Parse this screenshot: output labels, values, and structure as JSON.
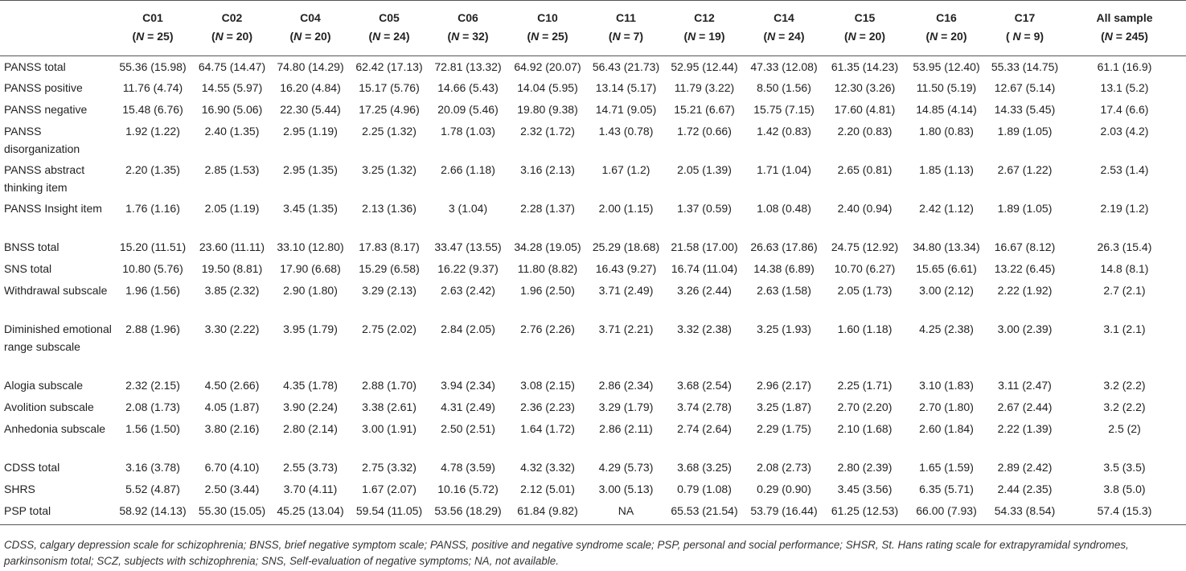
{
  "table": {
    "columns": [
      {
        "name": "C01",
        "n": "(N = 25)"
      },
      {
        "name": "C02",
        "n": "(N = 20)"
      },
      {
        "name": "C04",
        "n": "(N = 20)"
      },
      {
        "name": "C05",
        "n": "(N = 24)"
      },
      {
        "name": "C06",
        "n": "(N = 32)"
      },
      {
        "name": "C10",
        "n": "(N = 25)"
      },
      {
        "name": "C11",
        "n": "(N = 7)"
      },
      {
        "name": "C12",
        "n": "(N = 19)"
      },
      {
        "name": "C14",
        "n": "(N = 24)"
      },
      {
        "name": "C15",
        "n": "(N = 20)"
      },
      {
        "name": "C16",
        "n": "(N = 20)"
      },
      {
        "name": "C17",
        "n": "( N = 9)"
      },
      {
        "name": "All sample",
        "n": "(N = 245)"
      }
    ],
    "rows": [
      {
        "label": "PANSS total",
        "values": [
          "55.36 (15.98)",
          "64.75 (14.47)",
          "74.80 (14.29)",
          "62.42 (17.13)",
          "72.81 (13.32)",
          "64.92 (20.07)",
          "56.43 (21.73)",
          "52.95 (12.44)",
          "47.33 (12.08)",
          "61.35 (14.23)",
          "53.95 (12.40)",
          "55.33 (14.75)",
          "61.1 (16.9)"
        ]
      },
      {
        "label": "PANSS positive",
        "values": [
          "11.76 (4.74)",
          "14.55 (5.97)",
          "16.20 (4.84)",
          "15.17 (5.76)",
          "14.66 (5.43)",
          "14.04 (5.95)",
          "13.14 (5.17)",
          "11.79 (3.22)",
          "8.50 (1.56)",
          "12.30 (3.26)",
          "11.50 (5.19)",
          "12.67 (5.14)",
          "13.1 (5.2)"
        ]
      },
      {
        "label": "PANSS negative",
        "values": [
          "15.48 (6.76)",
          "16.90 (5.06)",
          "22.30 (5.44)",
          "17.25 (4.96)",
          "20.09 (5.46)",
          "19.80 (9.38)",
          "14.71 (9.05)",
          "15.21 (6.67)",
          "15.75 (7.15)",
          "17.60 (4.81)",
          "14.85 (4.14)",
          "14.33 (5.45)",
          "17.4 (6.6)"
        ]
      },
      {
        "label": "PANSS disorganization",
        "values": [
          "1.92 (1.22)",
          "2.40 (1.35)",
          "2.95 (1.19)",
          "2.25 (1.32)",
          "1.78 (1.03)",
          "2.32 (1.72)",
          "1.43 (0.78)",
          "1.72 (0.66)",
          "1.42 (0.83)",
          "2.20 (0.83)",
          "1.80 (0.83)",
          "1.89 (1.05)",
          "2.03 (4.2)"
        ]
      },
      {
        "label": "PANSS abstract thinking item",
        "values": [
          "2.20 (1.35)",
          "2.85 (1.53)",
          "2.95 (1.35)",
          "3.25 (1.32)",
          "2.66 (1.18)",
          "3.16 (2.13)",
          "1.67 (1.2)",
          "2.05 (1.39)",
          "1.71 (1.04)",
          "2.65 (0.81)",
          "1.85 (1.13)",
          "2.67 (1.22)",
          "2.53 (1.4)"
        ]
      },
      {
        "label": "PANSS Insight item",
        "values": [
          "1.76 (1.16)",
          "2.05 (1.19)",
          "3.45 (1.35)",
          "2.13 (1.36)",
          "3 (1.04)",
          "2.28 (1.37)",
          "2.00 (1.15)",
          "1.37 (0.59)",
          "1.08 (0.48)",
          "2.40 (0.94)",
          "2.42 (1.12)",
          "1.89 (1.05)",
          "2.19 (1.2)"
        ]
      },
      {
        "label": "BNSS total",
        "values": [
          "15.20 (11.51)",
          "23.60 (11.11)",
          "33.10 (12.80)",
          "17.83 (8.17)",
          "33.47 (13.55)",
          "34.28 (19.05)",
          "25.29 (18.68)",
          "21.58 (17.00)",
          "26.63 (17.86)",
          "24.75 (12.92)",
          "34.80 (13.34)",
          "16.67 (8.12)",
          "26.3 (15.4)"
        ]
      },
      {
        "label": "SNS total",
        "values": [
          "10.80 (5.76)",
          "19.50 (8.81)",
          "17.90 (6.68)",
          "15.29 (6.58)",
          "16.22 (9.37)",
          "11.80 (8.82)",
          "16.43 (9.27)",
          "16.74 (11.04)",
          "14.38 (6.89)",
          "10.70 (6.27)",
          "15.65 (6.61)",
          "13.22 (6.45)",
          "14.8 (8.1)"
        ]
      },
      {
        "label": "Withdrawal subscale",
        "values": [
          "1.96 (1.56)",
          "3.85 (2.32)",
          "2.90 (1.80)",
          "3.29 (2.13)",
          "2.63 (2.42)",
          "1.96 (2.50)",
          "3.71 (2.49)",
          "3.26 (2.44)",
          "2.63 (1.58)",
          "2.05 (1.73)",
          "3.00 (2.12)",
          "2.22 (1.92)",
          "2.7 (2.1)"
        ]
      },
      {
        "label": "Diminished emotional range subscale",
        "values": [
          "2.88 (1.96)",
          "3.30 (2.22)",
          "3.95 (1.79)",
          "2.75 (2.02)",
          "2.84 (2.05)",
          "2.76 (2.26)",
          "3.71 (2.21)",
          "3.32 (2.38)",
          "3.25 (1.93)",
          "1.60 (1.18)",
          "4.25 (2.38)",
          "3.00 (2.39)",
          "3.1 (2.1)"
        ]
      },
      {
        "label": "Alogia subscale",
        "values": [
          "2.32 (2.15)",
          "4.50 (2.66)",
          "4.35 (1.78)",
          "2.88 (1.70)",
          "3.94 (2.34)",
          "3.08 (2.15)",
          "2.86 (2.34)",
          "3.68 (2.54)",
          "2.96 (2.17)",
          "2.25 (1.71)",
          "3.10 (1.83)",
          "3.11 (2.47)",
          "3.2 (2.2)"
        ]
      },
      {
        "label": "Avolition subscale",
        "values": [
          "2.08 (1.73)",
          "4.05 (1.87)",
          "3.90 (2.24)",
          "3.38 (2.61)",
          "4.31 (2.49)",
          "2.36 (2.23)",
          "3.29 (1.79)",
          "3.74 (2.78)",
          "3.25 (1.87)",
          "2.70 (2.20)",
          "2.70 (1.80)",
          "2.67 (2.44)",
          "3.2 (2.2)"
        ]
      },
      {
        "label": "Anhedonia subscale",
        "values": [
          "1.56 (1.50)",
          "3.80 (2.16)",
          "2.80 (2.14)",
          "3.00 (1.91)",
          "2.50 (2.51)",
          "1.64 (1.72)",
          "2.86 (2.11)",
          "2.74 (2.64)",
          "2.29 (1.75)",
          "2.10 (1.68)",
          "2.60 (1.84)",
          "2.22 (1.39)",
          "2.5 (2)"
        ]
      },
      {
        "label": "CDSS total",
        "values": [
          "3.16 (3.78)",
          "6.70 (4.10)",
          "2.55 (3.73)",
          "2.75 (3.32)",
          "4.78 (3.59)",
          "4.32 (3.32)",
          "4.29 (5.73)",
          "3.68 (3.25)",
          "2.08 (2.73)",
          "2.80 (2.39)",
          "1.65 (1.59)",
          "2.89 (2.42)",
          "3.5 (3.5)"
        ]
      },
      {
        "label": "SHRS",
        "values": [
          "5.52 (4.87)",
          "2.50 (3.44)",
          "3.70 (4.11)",
          "1.67 (2.07)",
          "10.16 (5.72)",
          "2.12 (5.01)",
          "3.00 (5.13)",
          "0.79 (1.08)",
          "0.29 (0.90)",
          "3.45 (3.56)",
          "6.35 (5.71)",
          "2.44 (2.35)",
          "3.8 (5.0)"
        ]
      },
      {
        "label": "PSP total",
        "values": [
          "58.92 (14.13)",
          "55.30 (15.05)",
          "45.25 (13.04)",
          "59.54 (11.05)",
          "53.56 (18.29)",
          "61.84 (9.82)",
          "NA",
          "65.53 (21.54)",
          "53.79 (16.44)",
          "61.25 (12.53)",
          "66.00 (7.93)",
          "54.33 (8.54)",
          "57.4 (15.3)"
        ]
      }
    ]
  },
  "footnote": "CDSS, calgary depression scale for schizophrenia; BNSS, brief negative symptom scale; PANSS, positive and negative syndrome scale; PSP, personal and social performance; SHSR, St. Hans rating scale for extrapyramidal syndromes, parkinsonism total; SCZ, subjects with schizophrenia; SNS, Self-evaluation of negative symptoms; NA, not available."
}
